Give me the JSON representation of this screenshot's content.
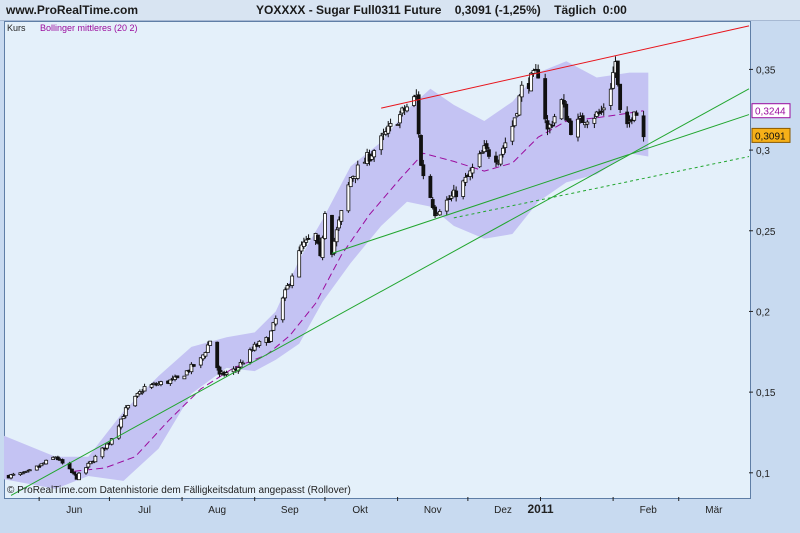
{
  "header": {
    "site": "www.ProRealTime.com",
    "title": "YOXXXX - Sugar Full0311 Future    0,3091 (-1,25%)    Täglich  0:00"
  },
  "legend": {
    "price_label": "Kurs",
    "indicator_label": "Bollinger mittleres (20 2)"
  },
  "copyright": "© ProRealTime.com  Datenhistorie dem Fälligkeitsdatum angepasst (Rollover)",
  "colors": {
    "band_fill": "#c4c3f3",
    "mid_line": "#9b0c9e",
    "trend_green": "#22a62f",
    "trend_red": "#e8141b",
    "tag_mid": "#9b0c9e",
    "tag_last_bg": "#f6b018"
  },
  "chart_data": {
    "type": "candlestick",
    "x_range": [
      "2010-05-17",
      "2011-03-31"
    ],
    "ylim": [
      0.085,
      0.38
    ],
    "y_ticks": [
      {
        "v": 0.1,
        "label": "0,1"
      },
      {
        "v": 0.15,
        "label": "0,15"
      },
      {
        "v": 0.2,
        "label": "0,2"
      },
      {
        "v": 0.25,
        "label": "0,25"
      },
      {
        "v": 0.3,
        "label": "0,3"
      },
      {
        "v": 0.35,
        "label": "0,35"
      }
    ],
    "x_ticks": [
      {
        "date": "2010-06-01",
        "label": "Jun"
      },
      {
        "date": "2010-07-01",
        "label": "Jul"
      },
      {
        "date": "2010-08-01",
        "label": "Aug"
      },
      {
        "date": "2010-09-01",
        "label": "Sep"
      },
      {
        "date": "2010-10-01",
        "label": "Okt"
      },
      {
        "date": "2010-11-01",
        "label": "Nov"
      },
      {
        "date": "2010-12-01",
        "label": "Dez"
      },
      {
        "date": "2011-01-01",
        "label": "2011",
        "bold": true
      },
      {
        "date": "2011-02-01",
        "label": "Feb"
      },
      {
        "date": "2011-03-01",
        "label": "Mär"
      }
    ],
    "grid": false,
    "price_anchors": [
      [
        "2010-05-19",
        0.098
      ],
      [
        "2010-05-27",
        0.1
      ],
      [
        "2010-06-08",
        0.11
      ],
      [
        "2010-06-17",
        0.097
      ],
      [
        "2010-07-01",
        0.119
      ],
      [
        "2010-07-08",
        0.139
      ],
      [
        "2010-07-16",
        0.153
      ],
      [
        "2010-07-30",
        0.158
      ],
      [
        "2010-08-09",
        0.17
      ],
      [
        "2010-08-13",
        0.182
      ],
      [
        "2010-08-17",
        0.16
      ],
      [
        "2010-08-24",
        0.164
      ],
      [
        "2010-09-01",
        0.178
      ],
      [
        "2010-09-07",
        0.183
      ],
      [
        "2010-09-15",
        0.215
      ],
      [
        "2010-09-21",
        0.24
      ],
      [
        "2010-09-27",
        0.247
      ],
      [
        "2010-09-29",
        0.232
      ],
      [
        "2010-10-01",
        0.263
      ],
      [
        "2010-10-04",
        0.238
      ],
      [
        "2010-10-07",
        0.255
      ],
      [
        "2010-10-12",
        0.283
      ],
      [
        "2010-10-22",
        0.3
      ],
      [
        "2010-10-29",
        0.314
      ],
      [
        "2010-11-04",
        0.325
      ],
      [
        "2010-11-09",
        0.333
      ],
      [
        "2010-11-11",
        0.29
      ],
      [
        "2010-11-17",
        0.262
      ],
      [
        "2010-11-25",
        0.272
      ],
      [
        "2010-12-01",
        0.283
      ],
      [
        "2010-12-08",
        0.3
      ],
      [
        "2010-12-14",
        0.295
      ],
      [
        "2010-12-20",
        0.315
      ],
      [
        "2010-12-24",
        0.338
      ],
      [
        "2010-12-31",
        0.348
      ],
      [
        "2011-01-04",
        0.312
      ],
      [
        "2011-01-10",
        0.33
      ],
      [
        "2011-01-14",
        0.313
      ],
      [
        "2011-01-20",
        0.32
      ],
      [
        "2011-01-27",
        0.323
      ],
      [
        "2011-01-31",
        0.34
      ],
      [
        "2011-02-02",
        0.355
      ],
      [
        "2011-02-04",
        0.323
      ],
      [
        "2011-02-07",
        0.313
      ],
      [
        "2011-02-10",
        0.327
      ],
      [
        "2011-02-14",
        0.3091
      ]
    ],
    "bollinger": {
      "upper": [
        [
          "2010-05-17",
          0.123
        ],
        [
          "2010-06-08",
          0.11
        ],
        [
          "2010-06-22",
          0.11
        ],
        [
          "2010-07-07",
          0.138
        ],
        [
          "2010-07-22",
          0.16
        ],
        [
          "2010-08-05",
          0.178
        ],
        [
          "2010-08-20",
          0.184
        ],
        [
          "2010-09-01",
          0.187
        ],
        [
          "2010-09-10",
          0.2
        ],
        [
          "2010-09-20",
          0.232
        ],
        [
          "2010-09-30",
          0.257
        ],
        [
          "2010-10-12",
          0.29
        ],
        [
          "2010-10-25",
          0.305
        ],
        [
          "2010-11-05",
          0.325
        ],
        [
          "2010-11-15",
          0.338
        ],
        [
          "2010-11-25",
          0.328
        ],
        [
          "2010-12-08",
          0.318
        ],
        [
          "2010-12-20",
          0.33
        ],
        [
          "2010-12-31",
          0.348
        ],
        [
          "2011-01-12",
          0.355
        ],
        [
          "2011-01-25",
          0.345
        ],
        [
          "2011-02-08",
          0.348
        ],
        [
          "2011-02-16",
          0.348
        ]
      ],
      "lower": [
        [
          "2010-05-17",
          0.096
        ],
        [
          "2010-06-08",
          0.09
        ],
        [
          "2010-06-22",
          0.098
        ],
        [
          "2010-07-07",
          0.095
        ],
        [
          "2010-07-22",
          0.115
        ],
        [
          "2010-08-05",
          0.149
        ],
        [
          "2010-08-20",
          0.165
        ],
        [
          "2010-09-01",
          0.163
        ],
        [
          "2010-09-10",
          0.17
        ],
        [
          "2010-09-20",
          0.18
        ],
        [
          "2010-09-30",
          0.206
        ],
        [
          "2010-10-12",
          0.23
        ],
        [
          "2010-10-25",
          0.253
        ],
        [
          "2010-11-05",
          0.268
        ],
        [
          "2010-11-15",
          0.265
        ],
        [
          "2010-11-25",
          0.253
        ],
        [
          "2010-12-08",
          0.245
        ],
        [
          "2010-12-20",
          0.248
        ],
        [
          "2010-12-31",
          0.268
        ],
        [
          "2011-01-12",
          0.28
        ],
        [
          "2011-01-25",
          0.285
        ],
        [
          "2011-02-08",
          0.298
        ],
        [
          "2011-02-16",
          0.296
        ]
      ],
      "middle": [
        [
          "2010-06-16",
          0.101
        ],
        [
          "2010-06-29",
          0.103
        ],
        [
          "2010-07-12",
          0.11
        ],
        [
          "2010-07-26",
          0.132
        ],
        [
          "2010-08-09",
          0.152
        ],
        [
          "2010-08-23",
          0.165
        ],
        [
          "2010-09-06",
          0.173
        ],
        [
          "2010-09-16",
          0.185
        ],
        [
          "2010-09-27",
          0.205
        ],
        [
          "2010-10-08",
          0.235
        ],
        [
          "2010-10-20",
          0.26
        ],
        [
          "2010-11-02",
          0.282
        ],
        [
          "2010-11-12",
          0.298
        ],
        [
          "2010-11-25",
          0.293
        ],
        [
          "2010-12-08",
          0.287
        ],
        [
          "2010-12-20",
          0.292
        ],
        [
          "2010-12-31",
          0.308
        ],
        [
          "2011-01-12",
          0.318
        ],
        [
          "2011-01-25",
          0.32
        ],
        [
          "2011-02-08",
          0.323
        ],
        [
          "2011-02-14",
          0.3244
        ]
      ]
    },
    "trendlines": [
      {
        "color": "red",
        "style": "solid",
        "from": [
          "2010-10-25",
          0.326
        ],
        "to": [
          "2011-03-31",
          0.377
        ]
      },
      {
        "color": "green",
        "style": "solid",
        "from": [
          "2010-05-20",
          0.086
        ],
        "to": [
          "2011-03-31",
          0.338
        ]
      },
      {
        "color": "green",
        "style": "solid",
        "from": [
          "2010-10-04",
          0.236
        ],
        "to": [
          "2011-03-31",
          0.322
        ]
      },
      {
        "color": "green",
        "style": "dashed",
        "from": [
          "2010-11-25",
          0.258
        ],
        "to": [
          "2011-03-31",
          0.296
        ]
      }
    ],
    "price_tags": [
      {
        "label": "0,3244",
        "value": 0.3244,
        "kind": "middle"
      },
      {
        "label": "0,3091",
        "value": 0.3091,
        "kind": "last"
      }
    ]
  }
}
